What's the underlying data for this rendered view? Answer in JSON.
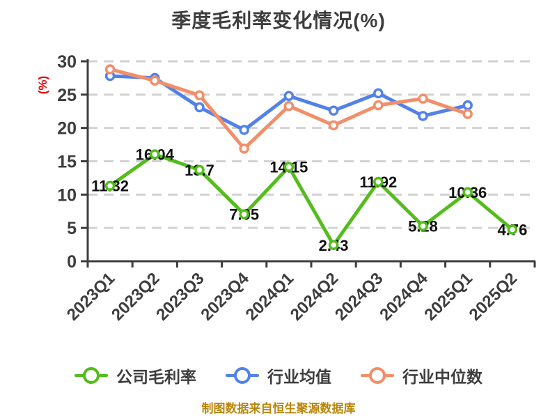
{
  "chart": {
    "title": "季度毛利率变化情况(%)",
    "y_axis_title": "(%)",
    "caption": "制图数据来自恒生聚源数据库"
  },
  "chart_data": {
    "type": "line",
    "title": "季度毛利率变化情况(%)",
    "xlabel": "",
    "ylabel": "(%)",
    "categories": [
      "2023Q1",
      "2023Q2",
      "2023Q3",
      "2023Q4",
      "2024Q1",
      "2024Q2",
      "2024Q3",
      "2024Q4",
      "2025Q1",
      "2025Q2"
    ],
    "ylim": [
      0,
      30
    ],
    "y_ticks": [
      0,
      5,
      10,
      15,
      20,
      25,
      30
    ],
    "grid": "horizontal-dashed",
    "legend_position": "bottom",
    "series": [
      {
        "name": "公司毛利率",
        "color": "#53bd1b",
        "values": [
          11.32,
          16.04,
          13.7,
          7.05,
          14.15,
          2.43,
          11.92,
          5.28,
          10.36,
          4.76
        ],
        "point_labels": [
          "11.32",
          "16.04",
          "13.7",
          "7.05",
          "14.15",
          "2.43",
          "11.92",
          "5.28",
          "10.36",
          "4.76"
        ],
        "show_labels": true
      },
      {
        "name": "行业均值",
        "color": "#5282e8",
        "values": [
          27.8,
          27.5,
          23.1,
          19.7,
          24.8,
          22.6,
          25.2,
          21.8,
          23.4
        ],
        "show_labels": false
      },
      {
        "name": "行业中位数",
        "color": "#f28e68",
        "values": [
          28.8,
          27.1,
          24.9,
          16.9,
          23.3,
          20.4,
          23.4,
          24.4,
          22.1
        ],
        "show_labels": false
      }
    ],
    "colors": {
      "title": "#3d3d3d",
      "axis": "#3d3d3d",
      "tick_label": "#3d3d3d",
      "grid": "#d2d2d2",
      "value_label": "#111111",
      "y_axis_title": "#e60000",
      "caption": "#b8860b",
      "marker_fill": "#ffffff"
    }
  }
}
